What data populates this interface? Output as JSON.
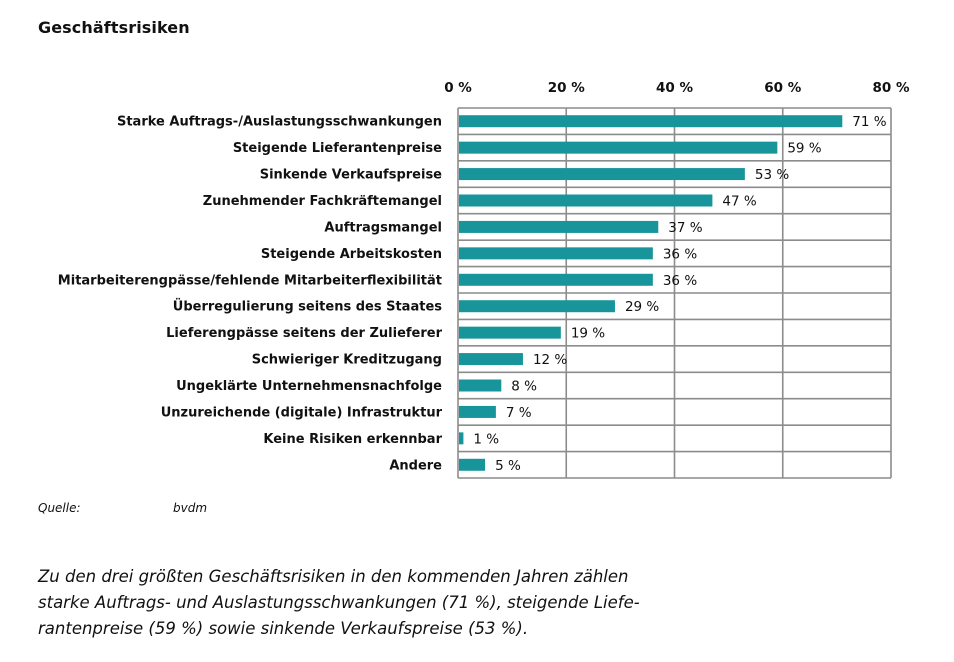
{
  "title": "Geschäftsrisiken",
  "colors": {
    "bar": "#17959A",
    "grid": "#8C8C8C",
    "text": "#111111"
  },
  "source": {
    "label": "Quelle:",
    "value": "bvdm"
  },
  "caption_lines": [
    "Zu den drei größten Geschäftsrisiken in den kommenden Jahren zählen",
    "starke Auftrags- und Auslastungsschwankungen (71 %), steigende Liefe-",
    "rantenpreise (59 %) sowie sinkende Verkaufspreise (53 %)."
  ],
  "chart_data": {
    "type": "bar",
    "orientation": "horizontal",
    "title": "Geschäftsrisiken",
    "xlabel": "",
    "ylabel": "",
    "xlim": [
      0,
      80
    ],
    "x_ticks": [
      0,
      20,
      40,
      60,
      80
    ],
    "x_tick_labels": [
      "0 %",
      "20 %",
      "40 %",
      "60 %",
      "80 %"
    ],
    "x_axis_position": "top",
    "grid": true,
    "categories": [
      "Starke Auftrags-/Auslastungsschwankungen",
      "Steigende Lieferantenpreise",
      "Sinkende Verkaufspreise",
      "Zunehmender Fachkräftemangel",
      "Auftragsmangel",
      "Steigende Arbeitskosten",
      "Mitarbeiterengpässe/fehlende Mitarbeiterflexibilität",
      "Überregulierung seitens des Staates",
      "Lieferengpässe seitens der Zulieferer",
      "Schwieriger Kreditzugang",
      "Ungeklärte Unternehmensnachfolge",
      "Unzureichende (digitale) Infrastruktur",
      "Keine Risiken erkennbar",
      "Andere"
    ],
    "values": [
      71,
      59,
      53,
      47,
      37,
      36,
      36,
      29,
      19,
      12,
      8,
      7,
      1,
      5
    ],
    "value_labels": [
      "71 %",
      "59 %",
      "53 %",
      "47 %",
      "37 %",
      "36 %",
      "36 %",
      "29 %",
      "19 %",
      "12 %",
      "8 %",
      "7 %",
      "1 %",
      "5 %"
    ],
    "unit": "%"
  }
}
